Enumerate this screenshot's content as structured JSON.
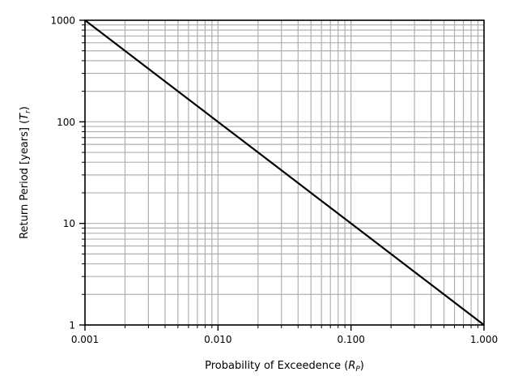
{
  "chart_data": {
    "type": "line",
    "title": "",
    "xlabel": {
      "text": "Probability of Exceedence (",
      "symbol": "R",
      "subscript": "P",
      "close": ")"
    },
    "ylabel": {
      "text": "Return Period [years] (",
      "symbol": "T",
      "subscript": "r",
      "close": ")"
    },
    "xscale": "log",
    "yscale": "log",
    "xlim": [
      0.001,
      1.0
    ],
    "ylim": [
      1,
      1000
    ],
    "grid": true,
    "x_ticks": [
      {
        "value": 0.001,
        "label": "0.001"
      },
      {
        "value": 0.01,
        "label": "0.010"
      },
      {
        "value": 0.1,
        "label": "0.100"
      },
      {
        "value": 1.0,
        "label": "1.000"
      }
    ],
    "y_ticks": [
      {
        "value": 1,
        "label": "1"
      },
      {
        "value": 10,
        "label": "10"
      },
      {
        "value": 100,
        "label": "100"
      },
      {
        "value": 1000,
        "label": "1000"
      }
    ],
    "series": [
      {
        "color": "#000000",
        "x": [
          0.001,
          0.002,
          0.005,
          0.01,
          0.02,
          0.05,
          0.1,
          0.2,
          0.5,
          1.0
        ],
        "y": [
          1000,
          500,
          200,
          100,
          50,
          20,
          10,
          5,
          2,
          1
        ]
      }
    ],
    "colors": {
      "grid": "#b0b0b0",
      "axes": "#000000",
      "line": "#000000"
    }
  }
}
